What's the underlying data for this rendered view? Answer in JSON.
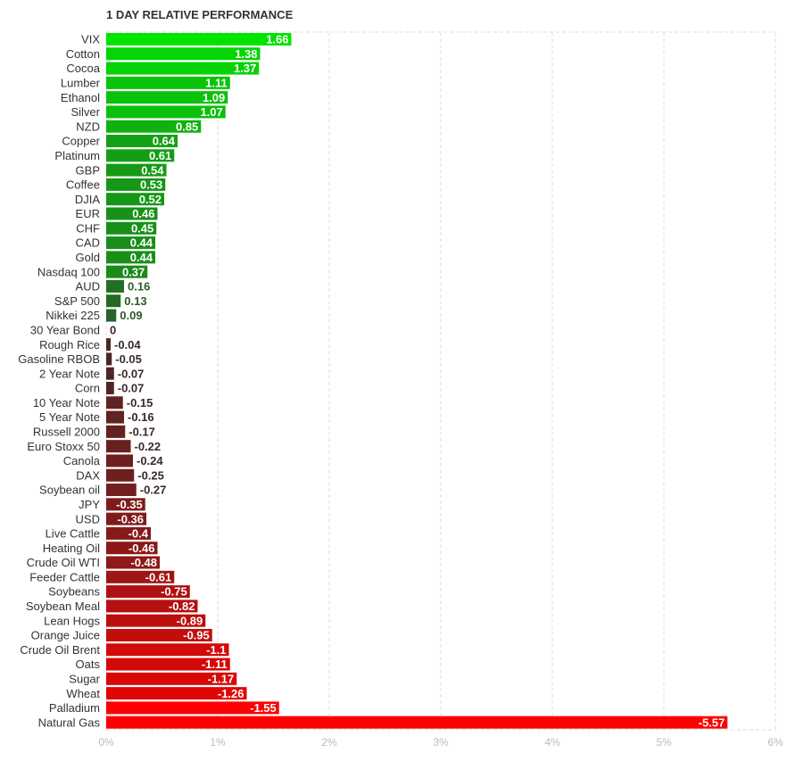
{
  "chart_data": {
    "type": "bar",
    "orientation": "horizontal",
    "title": "1 DAY RELATIVE PERFORMANCE",
    "categories": [
      "VIX",
      "Cotton",
      "Cocoa",
      "Lumber",
      "Ethanol",
      "Silver",
      "NZD",
      "Copper",
      "Platinum",
      "GBP",
      "Coffee",
      "DJIA",
      "EUR",
      "CHF",
      "CAD",
      "Gold",
      "Nasdaq 100",
      "AUD",
      "S&P 500",
      "Nikkei 225",
      "30 Year Bond",
      "Rough Rice",
      "Gasoline RBOB",
      "2 Year Note",
      "Corn",
      "10 Year Note",
      "5 Year Note",
      "Russell 2000",
      "Euro Stoxx 50",
      "Canola",
      "DAX",
      "Soybean oil",
      "JPY",
      "USD",
      "Live Cattle",
      "Heating Oil",
      "Crude Oil WTI",
      "Feeder Cattle",
      "Soybeans",
      "Soybean Meal",
      "Lean Hogs",
      "Orange Juice",
      "Crude Oil Brent",
      "Oats",
      "Sugar",
      "Wheat",
      "Palladium",
      "Natural Gas"
    ],
    "values": [
      1.66,
      1.38,
      1.37,
      1.11,
      1.09,
      1.07,
      0.85,
      0.64,
      0.61,
      0.54,
      0.53,
      0.52,
      0.46,
      0.45,
      0.44,
      0.44,
      0.37,
      0.16,
      0.13,
      0.09,
      0,
      -0.04,
      -0.05,
      -0.07,
      -0.07,
      -0.15,
      -0.16,
      -0.17,
      -0.22,
      -0.24,
      -0.25,
      -0.27,
      -0.35,
      -0.36,
      -0.4,
      -0.46,
      -0.48,
      -0.61,
      -0.75,
      -0.82,
      -0.89,
      -0.95,
      -1.1,
      -1.11,
      -1.17,
      -1.26,
      -1.55,
      -5.57
    ],
    "value_labels": [
      "1.66",
      "1.38",
      "1.37",
      "1.11",
      "1.09",
      "1.07",
      "0.85",
      "0.64",
      "0.61",
      "0.54",
      "0.53",
      "0.52",
      "0.46",
      "0.45",
      "0.44",
      "0.44",
      "0.37",
      "0.16",
      "0.13",
      "0.09",
      "0",
      "-0.04",
      "-0.05",
      "-0.07",
      "-0.07",
      "-0.15",
      "-0.16",
      "-0.17",
      "-0.22",
      "-0.24",
      "-0.25",
      "-0.27",
      "-0.35",
      "-0.36",
      "-0.4",
      "-0.46",
      "-0.48",
      "-0.61",
      "-0.75",
      "-0.82",
      "-0.89",
      "-0.95",
      "-1.1",
      "-1.11",
      "-1.17",
      "-1.26",
      "-1.55",
      "-5.57"
    ],
    "xlim": [
      0,
      6
    ],
    "xticks": [
      "0%",
      "1%",
      "2%",
      "3%",
      "4%",
      "5%",
      "6%"
    ],
    "scale": "absolute value",
    "grid": true,
    "colors": {
      "positive_max": "#00e400",
      "positive_min": "#2d4a2d",
      "negative_min": "#3a2a2a",
      "negative_max": "#ff0000"
    }
  }
}
